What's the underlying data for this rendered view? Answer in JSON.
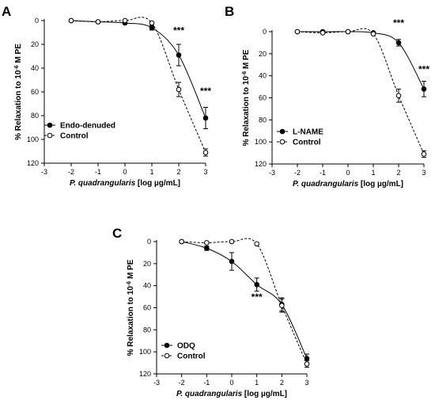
{
  "chart_data": [
    {
      "panel": "A",
      "type": "line",
      "xlabel_italic": "P. quadrangularis",
      "xlabel_unit": "[log µg/mL]",
      "ylabel_prefix": "% Relaxation to 10",
      "ylabel_exp": "-6",
      "ylabel_suffix": " M PE",
      "xlim": [
        -3,
        3
      ],
      "ylim": [
        0,
        120
      ],
      "y_inverted": true,
      "xticks": [
        "-3",
        "-2",
        "-1",
        "0",
        "1",
        "2",
        "3"
      ],
      "yticks": [
        "0",
        "20",
        "40",
        "60",
        "80",
        "100",
        "120"
      ],
      "legend_position": "bottom-left",
      "series": [
        {
          "name": "Endo-denuded",
          "marker": "filled-circle",
          "line": "solid",
          "x": [
            -2,
            -1,
            0,
            1,
            2,
            3
          ],
          "y": [
            0,
            1,
            2,
            6,
            29,
            82
          ],
          "err": [
            1,
            1,
            1,
            2,
            9,
            9
          ]
        },
        {
          "name": "Control",
          "marker": "open-circle",
          "line": "dashed",
          "x": [
            -2,
            -1,
            0,
            1,
            2,
            3
          ],
          "y": [
            0,
            1,
            0,
            2,
            58,
            111
          ],
          "err": [
            1,
            1,
            1,
            1,
            6,
            3
          ]
        }
      ],
      "annotations": [
        {
          "text": "***",
          "x": 2,
          "y": 11
        },
        {
          "text": "***",
          "x": 3,
          "y": 62
        }
      ]
    },
    {
      "panel": "B",
      "type": "line",
      "xlabel_italic": "P. quadrangularis",
      "xlabel_unit": "[log µg/mL]",
      "ylabel_prefix": "% Relaxation to 10",
      "ylabel_exp": "-6",
      "ylabel_suffix": " M PE",
      "xlim": [
        -3,
        3
      ],
      "ylim": [
        0,
        120
      ],
      "y_inverted": true,
      "xticks": [
        "-3",
        "-2",
        "-1",
        "0",
        "1",
        "2",
        "3"
      ],
      "yticks": [
        "0",
        "20",
        "40",
        "60",
        "80",
        "100",
        "120"
      ],
      "legend_position": "bottom-left",
      "series": [
        {
          "name": "L-NAME",
          "marker": "filled-circle",
          "line": "solid",
          "x": [
            -2,
            -1,
            0,
            1,
            2,
            3
          ],
          "y": [
            0,
            0,
            0,
            1,
            10,
            52
          ],
          "err": [
            1,
            1,
            1,
            1,
            3,
            7
          ]
        },
        {
          "name": "Control",
          "marker": "open-circle",
          "line": "dashed",
          "x": [
            -2,
            -1,
            0,
            1,
            2,
            3
          ],
          "y": [
            0,
            1,
            0,
            2,
            58,
            111
          ],
          "err": [
            1,
            1,
            1,
            1,
            6,
            3
          ]
        }
      ],
      "annotations": [
        {
          "text": "***",
          "x": 2,
          "y": -5
        },
        {
          "text": "***",
          "x": 3,
          "y": 37
        }
      ]
    },
    {
      "panel": "C",
      "type": "line",
      "xlabel_italic": "P. quadrangularis",
      "xlabel_unit": "[log µg/mL]",
      "ylabel_prefix": "% Relaxation to 10",
      "ylabel_exp": "-6",
      "ylabel_suffix": " M PE",
      "xlim": [
        -3,
        3
      ],
      "ylim": [
        0,
        120
      ],
      "y_inverted": true,
      "xticks": [
        "-3",
        "-2",
        "-1",
        "0",
        "1",
        "2",
        "3"
      ],
      "yticks": [
        "0",
        "20",
        "40",
        "60",
        "80",
        "100",
        "120"
      ],
      "legend_position": "bottom-left",
      "series": [
        {
          "name": "ODQ",
          "marker": "filled-circle",
          "line": "solid",
          "x": [
            -2,
            -1,
            0,
            1,
            2,
            3
          ],
          "y": [
            0,
            6,
            18,
            39,
            57,
            106
          ],
          "err": [
            1,
            2,
            8,
            6,
            6,
            4
          ]
        },
        {
          "name": "Control",
          "marker": "open-circle",
          "line": "dashed",
          "x": [
            -2,
            -1,
            0,
            1,
            2,
            3
          ],
          "y": [
            0,
            1,
            0,
            2,
            58,
            111
          ],
          "err": [
            1,
            1,
            1,
            1,
            6,
            3
          ]
        }
      ],
      "annotations": [
        {
          "text": "***",
          "x": 1,
          "y": 53
        }
      ]
    }
  ]
}
